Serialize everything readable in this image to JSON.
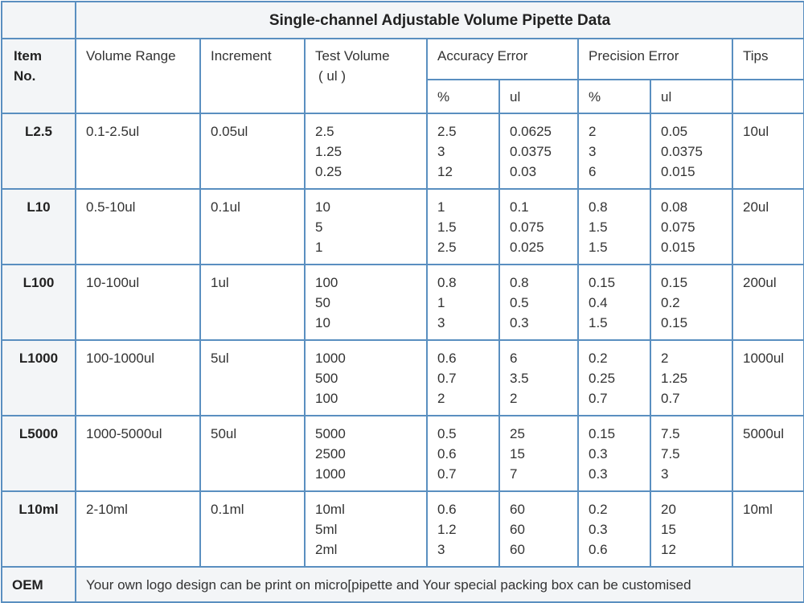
{
  "title": "Single-channel Adjustable Volume Pipette Data",
  "headers": {
    "item": "Item No.",
    "volume_range": "Volume Range",
    "increment": "Increment",
    "test_volume": "Test Volume",
    "test_volume_unit": "( ul )",
    "accuracy": "Accuracy Error",
    "precision": "Precision Error",
    "tips": "Tips",
    "acc_pct": "%",
    "acc_ul": "ul",
    "prec_pct": "%",
    "prec_ul": "ul"
  },
  "rows": [
    {
      "item": "L2.5",
      "range": "0.1-2.5ul",
      "increment": "0.05ul",
      "test": [
        "2.5",
        "1.25",
        "0.25"
      ],
      "acc_pct": [
        "2.5",
        "3",
        "12"
      ],
      "acc_ul": [
        "0.0625",
        "0.0375",
        "0.03"
      ],
      "prec_pct": [
        "2",
        "3",
        "6"
      ],
      "prec_ul": [
        "0.05",
        "0.0375",
        "0.015"
      ],
      "tips": "10ul"
    },
    {
      "item": "L10",
      "range": "0.5-10ul",
      "increment": "0.1ul",
      "test": [
        "10",
        "5",
        "1"
      ],
      "acc_pct": [
        "1",
        "1.5",
        "2.5"
      ],
      "acc_ul": [
        "0.1",
        "0.075",
        "0.025"
      ],
      "prec_pct": [
        "0.8",
        "1.5",
        "1.5"
      ],
      "prec_ul": [
        "0.08",
        "0.075",
        "0.015"
      ],
      "tips": "20ul"
    },
    {
      "item": "L100",
      "range": "10-100ul",
      "increment": "1ul",
      "test": [
        "100",
        "50",
        "10"
      ],
      "acc_pct": [
        "0.8",
        "1",
        "3"
      ],
      "acc_ul": [
        "0.8",
        "0.5",
        "0.3"
      ],
      "prec_pct": [
        "0.15",
        "0.4",
        "1.5"
      ],
      "prec_ul": [
        "0.15",
        "0.2",
        "0.15"
      ],
      "tips": "200ul"
    },
    {
      "item": "L1000",
      "range": "100-1000ul",
      "increment": "5ul",
      "test": [
        "1000",
        "500",
        "100"
      ],
      "acc_pct": [
        "0.6",
        "0.7",
        "2"
      ],
      "acc_ul": [
        "6",
        "3.5",
        "2"
      ],
      "prec_pct": [
        "0.2",
        "0.25",
        "0.7"
      ],
      "prec_ul": [
        "2",
        "1.25",
        "0.7"
      ],
      "tips": "1000ul"
    },
    {
      "item": "L5000",
      "range": "1000-5000ul",
      "increment": "50ul",
      "test": [
        "5000",
        "2500",
        "1000"
      ],
      "acc_pct": [
        "0.5",
        "0.6",
        "0.7"
      ],
      "acc_ul": [
        "25",
        "15",
        "7"
      ],
      "prec_pct": [
        "0.15",
        "0.3",
        "0.3"
      ],
      "prec_ul": [
        "7.5",
        "7.5",
        "3"
      ],
      "tips": "5000ul"
    },
    {
      "item": "L10ml",
      "range": "2-10ml",
      "increment": "0.1ml",
      "test": [
        "10ml",
        "5ml",
        "2ml"
      ],
      "acc_pct": [
        "0.6",
        "1.2",
        "3"
      ],
      "acc_ul": [
        "60",
        "60",
        "60"
      ],
      "prec_pct": [
        "0.2",
        "0.3",
        "0.6"
      ],
      "prec_ul": [
        "20",
        "15",
        "12"
      ],
      "tips": "10ml"
    }
  ],
  "oem": {
    "label": "OEM",
    "text": "Your own logo design can be print on micro[pipette and  Your special packing box can be customised"
  }
}
